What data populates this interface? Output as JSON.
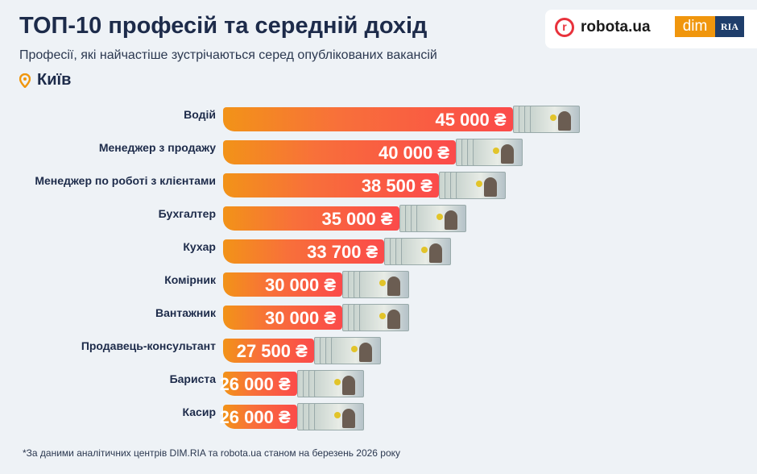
{
  "header": {
    "title": "ТОП-10 професій та середній дохід",
    "subtitle": "Професії, які найчастіше зустрічаються серед опублікованих вакансій",
    "city": "Київ",
    "city_icon": "map-pin-icon",
    "logos": [
      "robota.ua",
      "dim",
      "RIA"
    ]
  },
  "chart_data": {
    "type": "bar",
    "orientation": "horizontal",
    "unit": "₴",
    "categories": [
      "Водій",
      "Менеджер з продажу",
      "Менеджер по роботі з клієнтами",
      "Бухгалтер",
      "Кухар",
      "Комірник",
      "Вантажник",
      "Продавець-консультант",
      "Бариста",
      "Касир"
    ],
    "values": [
      45000,
      40000,
      38500,
      35000,
      33700,
      30000,
      30000,
      27500,
      26000,
      26000
    ],
    "value_labels": [
      "45 000 ₴",
      "40 000 ₴",
      "38 500 ₴",
      "35 000 ₴",
      "33 700 ₴",
      "30 000 ₴",
      "30 000 ₴",
      "27 500 ₴",
      "26 000 ₴",
      "26 000 ₴"
    ],
    "colors": {
      "gradient_start": "#f29318",
      "gradient_end": "#fb4a4a"
    }
  },
  "footnote": "*За даними аналітичних центрів DIM.RIA та robota.ua станом на березень 2026 року"
}
